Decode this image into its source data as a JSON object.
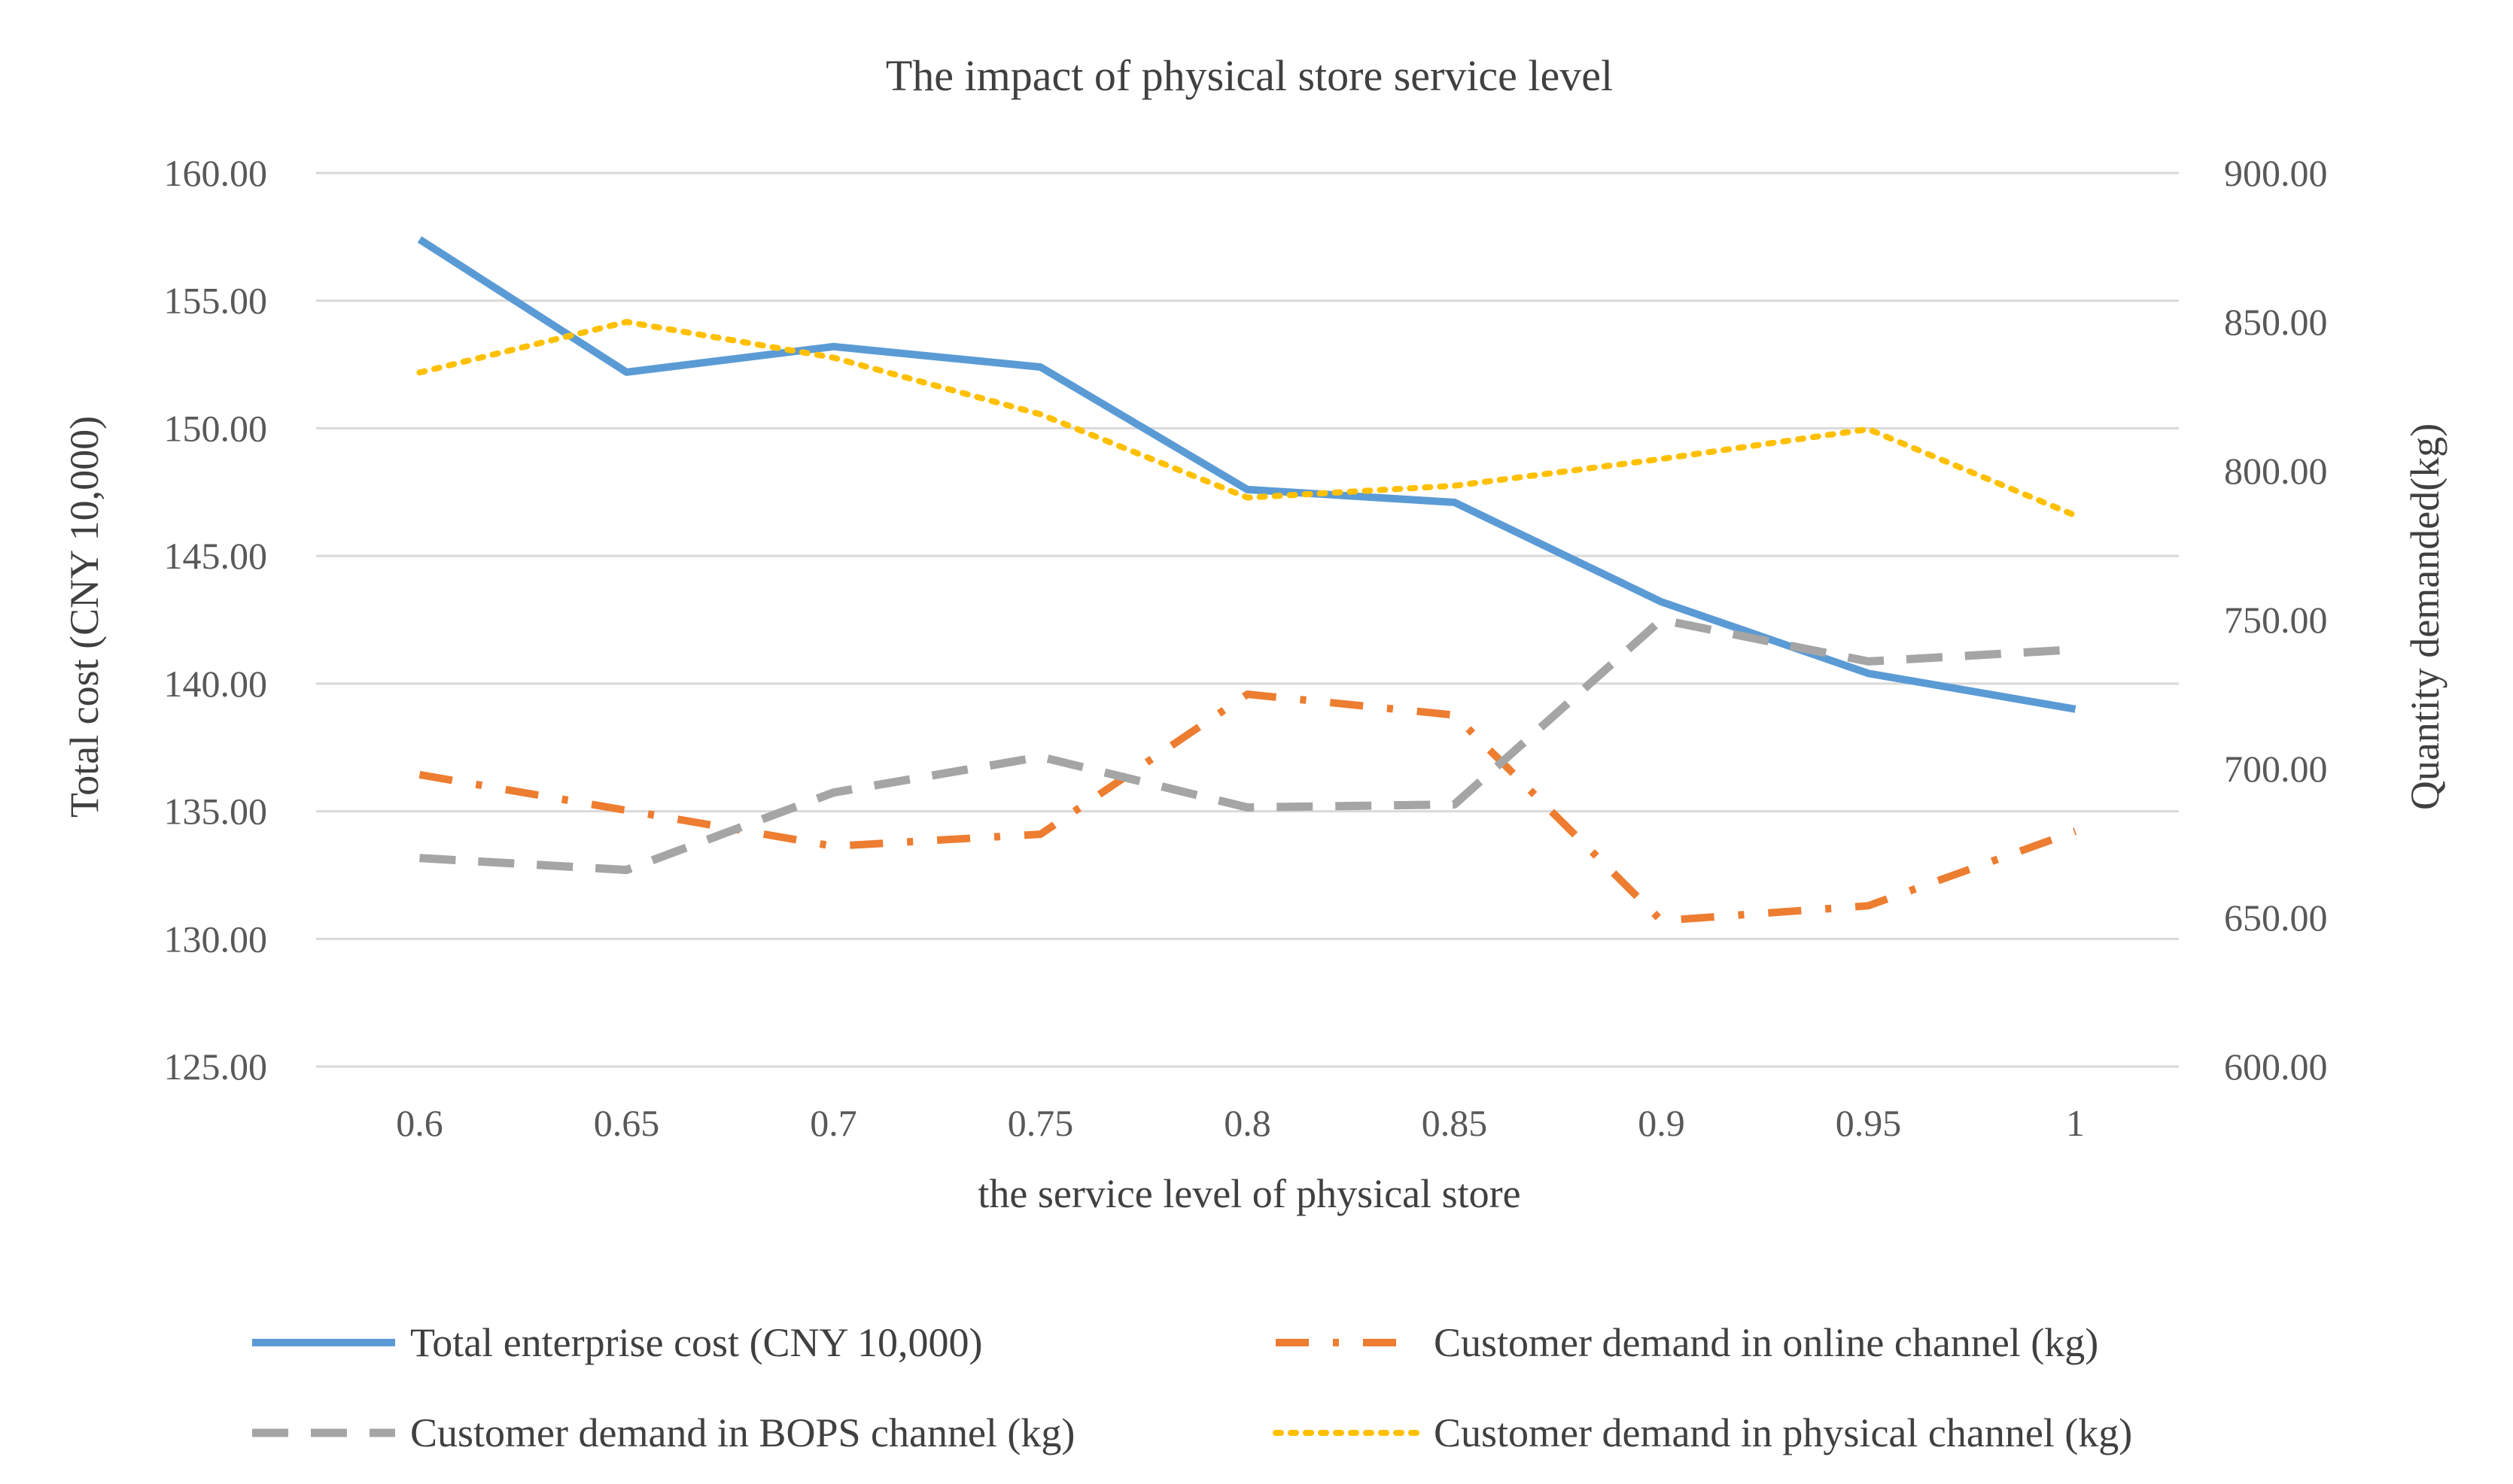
{
  "chart_data": {
    "type": "line",
    "title": "The impact of physical store service level",
    "xlabel": "the service level of physical store",
    "ylabel": "Total cost (CNY 10,000)",
    "y2label": "Quantity demanded(kg)",
    "categories": [
      "0.6",
      "0.65",
      "0.7",
      "0.75",
      "0.8",
      "0.85",
      "0.9",
      "0.95",
      "1"
    ],
    "ylim": [
      125,
      160
    ],
    "y2lim": [
      600,
      900
    ],
    "yticks": [
      "125.00",
      "130.00",
      "135.00",
      "140.00",
      "145.00",
      "150.00",
      "155.00",
      "160.00"
    ],
    "y2ticks": [
      "600.00",
      "650.00",
      "700.00",
      "750.00",
      "800.00",
      "850.00",
      "900.00"
    ],
    "grid": true,
    "legend_position": "bottom",
    "series": [
      {
        "name": "Total enterprise cost (CNY 10,000)",
        "axis": "left",
        "color": "#5b9bd5",
        "style": "solid",
        "values": [
          157.4,
          152.2,
          153.2,
          152.4,
          147.6,
          147.1,
          143.2,
          140.4,
          139.0
        ]
      },
      {
        "name": "Customer demand in online channel (kg)",
        "axis": "right",
        "color": "#ed7d31",
        "style": "dashdot",
        "values": [
          698,
          686,
          674,
          678,
          725,
          718,
          649,
          654,
          679
        ]
      },
      {
        "name": "Customer demand in BOPS channel (kg)",
        "axis": "right",
        "color": "#a5a5a5",
        "style": "dash",
        "values": [
          670,
          666,
          692,
          704,
          687,
          688,
          750,
          736,
          740
        ]
      },
      {
        "name": "Customer demand in physical channel (kg)",
        "axis": "right",
        "color": "#ffc000",
        "style": "dot",
        "values": [
          833,
          850,
          838,
          819,
          791,
          795,
          804,
          814,
          785
        ]
      }
    ]
  }
}
